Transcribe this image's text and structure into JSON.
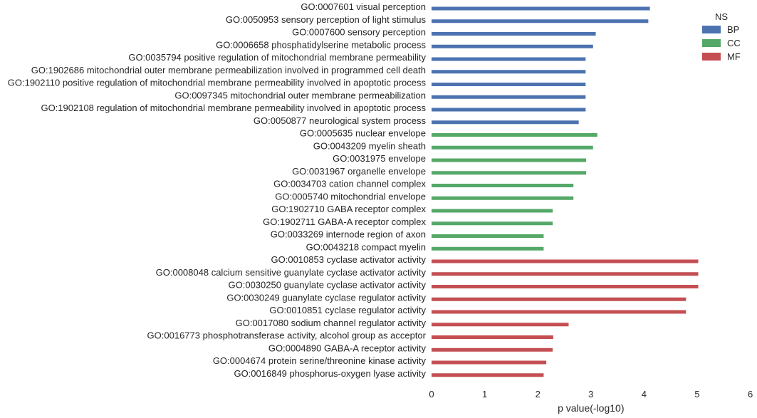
{
  "chart_data": {
    "type": "bar",
    "orientation": "horizontal",
    "xlabel": "p value(-log10)",
    "ylabel": "",
    "xlim": [
      0,
      6
    ],
    "xticks": [
      "0",
      "1",
      "2",
      "3",
      "4",
      "5",
      "6"
    ],
    "grid": false,
    "legend": {
      "title": "NS",
      "placement": "top-right"
    },
    "series": [
      {
        "name": "BP",
        "color": "#4c72b0"
      },
      {
        "name": "CC",
        "color": "#55a868"
      },
      {
        "name": "MF",
        "color": "#c44e52"
      }
    ],
    "categories": [
      "GO:0007601 visual perception",
      "GO:0050953 sensory perception of light stimulus",
      "GO:0007600 sensory perception",
      "GO:0006658 phosphatidylserine metabolic process",
      "GO:0035794 positive regulation of mitochondrial membrane permeability",
      "GO:1902686 mitochondrial outer membrane permeabilization involved in programmed cell death",
      "GO:1902110 positive regulation of mitochondrial membrane permeability involved in apoptotic process",
      "GO:0097345 mitochondrial outer membrane permeabilization",
      "GO:1902108 regulation of mitochondrial membrane permeability involved in apoptotic process",
      "GO:0050877 neurological system process",
      "GO:0005635 nuclear envelope",
      "GO:0043209 myelin sheath",
      "GO:0031975 envelope",
      "GO:0031967 organelle envelope",
      "GO:0034703 cation channel complex",
      "GO:0005740 mitochondrial envelope",
      "GO:1902710 GABA receptor complex",
      "GO:1902711 GABA-A receptor complex",
      "GO:0033269 internode region of axon",
      "GO:0043218 compact myelin",
      "GO:0010853 cyclase activator activity",
      "GO:0008048 calcium sensitive guanylate cyclase activator activity",
      "GO:0030250 guanylate cyclase activator activity",
      "GO:0030249 guanylate cyclase regulator activity",
      "GO:0010851 cyclase regulator activity",
      "GO:0017080 sodium channel regulator activity",
      "GO:0016773 phosphotransferase activity, alcohol group as acceptor",
      "GO:0004890 GABA-A receptor activity",
      "GO:0004674 protein serine/threonine kinase activity",
      "GO:0016849 phosphorus-oxygen lyase activity"
    ],
    "groups": [
      "BP",
      "BP",
      "BP",
      "BP",
      "BP",
      "BP",
      "BP",
      "BP",
      "BP",
      "BP",
      "CC",
      "CC",
      "CC",
      "CC",
      "CC",
      "CC",
      "CC",
      "CC",
      "CC",
      "CC",
      "MF",
      "MF",
      "MF",
      "MF",
      "MF",
      "MF",
      "MF",
      "MF",
      "MF",
      "MF"
    ],
    "values": [
      4.11,
      4.08,
      3.09,
      3.04,
      2.9,
      2.9,
      2.9,
      2.9,
      2.9,
      2.77,
      3.12,
      3.04,
      2.91,
      2.91,
      2.67,
      2.67,
      2.28,
      2.28,
      2.11,
      2.11,
      5.02,
      5.02,
      5.02,
      4.79,
      4.79,
      2.58,
      2.29,
      2.28,
      2.16,
      2.11
    ]
  }
}
